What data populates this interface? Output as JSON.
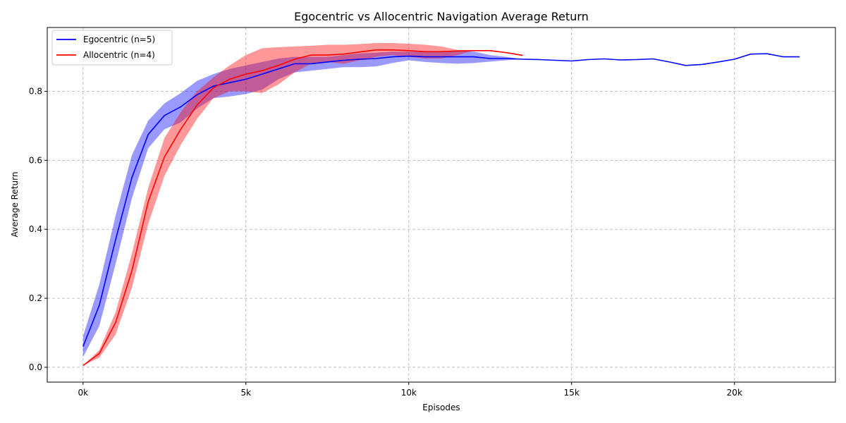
{
  "chart_data": {
    "type": "line",
    "title": "Egocentric vs Allocentric Navigation Average Return",
    "xlabel": "Episodes",
    "ylabel": "Average Return",
    "xlim": [
      -1100,
      23100
    ],
    "ylim": [
      -0.043,
      0.985
    ],
    "x_ticks": [
      0,
      5000,
      10000,
      15000,
      20000
    ],
    "x_tick_labels": [
      "0k",
      "5k",
      "10k",
      "15k",
      "20k"
    ],
    "y_ticks": [
      0.0,
      0.2,
      0.4,
      0.6,
      0.8
    ],
    "y_tick_labels": [
      "0.0",
      "0.2",
      "0.4",
      "0.6",
      "0.8"
    ],
    "grid": true,
    "legend_position": "top-left",
    "series": [
      {
        "name": "Egocentric (n=5)",
        "color": "#0000ff",
        "x": [
          0,
          500,
          1000,
          1500,
          2000,
          2500,
          3000,
          3500,
          4000,
          4500,
          5000,
          5500,
          6000,
          6500,
          7000,
          7500,
          8000,
          8500,
          9000,
          9500,
          10000,
          10500,
          11000,
          11500,
          12000,
          12500,
          13000,
          13500,
          14000,
          14500,
          15000,
          15500,
          16000,
          16500,
          17000,
          17500,
          18000,
          18500,
          19000,
          19500,
          20000,
          20500,
          21000,
          21500,
          22000
        ],
        "values": [
          0.06,
          0.18,
          0.37,
          0.55,
          0.675,
          0.73,
          0.755,
          0.79,
          0.815,
          0.825,
          0.835,
          0.85,
          0.865,
          0.88,
          0.88,
          0.885,
          0.89,
          0.893,
          0.895,
          0.9,
          0.902,
          0.9,
          0.9,
          0.9,
          0.9,
          0.895,
          0.895,
          0.893,
          0.892,
          0.89,
          0.888,
          0.892,
          0.894,
          0.891,
          0.892,
          0.894,
          0.885,
          0.875,
          0.878,
          0.885,
          0.893,
          0.908,
          0.909,
          0.9,
          0.9
        ],
        "lower": [
          0.03,
          0.12,
          0.3,
          0.49,
          0.635,
          0.69,
          0.71,
          0.75,
          0.78,
          0.785,
          0.792,
          0.805,
          0.835,
          0.855,
          0.86,
          0.865,
          0.87,
          0.87,
          0.872,
          0.882,
          0.89,
          0.885,
          0.882,
          0.88,
          0.882,
          0.886,
          0.89,
          0.893,
          0.892,
          0.89,
          0.888,
          0.892,
          0.894,
          0.891,
          0.892,
          0.894,
          0.885,
          0.875,
          0.878,
          0.885,
          0.893,
          0.908,
          0.909,
          0.9,
          0.9
        ],
        "upper": [
          0.09,
          0.24,
          0.44,
          0.615,
          0.715,
          0.765,
          0.795,
          0.83,
          0.85,
          0.865,
          0.875,
          0.885,
          0.895,
          0.9,
          0.9,
          0.9,
          0.905,
          0.91,
          0.912,
          0.915,
          0.915,
          0.915,
          0.915,
          0.918,
          0.915,
          0.905,
          0.9,
          0.893,
          0.892,
          0.89,
          0.888,
          0.892,
          0.894,
          0.891,
          0.892,
          0.894,
          0.885,
          0.875,
          0.878,
          0.885,
          0.893,
          0.908,
          0.909,
          0.9,
          0.9
        ]
      },
      {
        "name": "Allocentric (n=4)",
        "color": "#ff0000",
        "x": [
          0,
          500,
          1000,
          1500,
          2000,
          2500,
          3000,
          3500,
          4000,
          4500,
          5000,
          5500,
          6000,
          6500,
          7000,
          7500,
          8000,
          8500,
          9000,
          9500,
          10000,
          10500,
          11000,
          11500,
          12000,
          12500,
          13000,
          13500
        ],
        "values": [
          0.005,
          0.04,
          0.13,
          0.28,
          0.48,
          0.61,
          0.69,
          0.76,
          0.81,
          0.835,
          0.85,
          0.86,
          0.875,
          0.893,
          0.905,
          0.905,
          0.908,
          0.914,
          0.92,
          0.92,
          0.918,
          0.915,
          0.915,
          0.917,
          0.918,
          0.918,
          0.912,
          0.904
        ],
        "lower": [
          0.005,
          0.028,
          0.095,
          0.23,
          0.415,
          0.555,
          0.645,
          0.72,
          0.78,
          0.8,
          0.8,
          0.795,
          0.82,
          0.855,
          0.88,
          0.885,
          0.88,
          0.89,
          0.9,
          0.905,
          0.9,
          0.895,
          0.895,
          0.905,
          0.918,
          0.918,
          0.912,
          0.904
        ],
        "upper": [
          0.005,
          0.05,
          0.16,
          0.33,
          0.52,
          0.665,
          0.74,
          0.8,
          0.84,
          0.875,
          0.905,
          0.925,
          0.928,
          0.93,
          0.932,
          0.935,
          0.935,
          0.937,
          0.94,
          0.94,
          0.938,
          0.935,
          0.93,
          0.92,
          0.918,
          0.918,
          0.912,
          0.904
        ]
      }
    ]
  }
}
